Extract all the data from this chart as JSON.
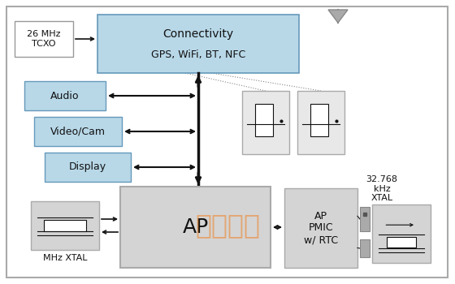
{
  "bg_color": "#ffffff",
  "outer_border_color": "#999999",
  "blue_fill": "#b8d8e8",
  "blue_border": "#6699bb",
  "gray_fill": "#c8c8c8",
  "gray_border": "#999999",
  "lgray_fill": "#d4d4d4",
  "lgray_border": "#aaaaaa",
  "white_fill": "#ffffff",
  "tcxo_label": "26 MHz\nTCXO",
  "connectivity_line1": "Connectivity",
  "connectivity_line2": "GPS, WiFi, BT, NFC",
  "audio_label": "Audio",
  "videocam_label": "Video/Cam",
  "display_label": "Display",
  "ap_label": "AP",
  "ap_pmic_label": "AP\nPMIC\nw/ RTC",
  "mhz_xtal_label": "MHz XTAL",
  "khz_label": "32.768\nkHz\nXTAL",
  "watermark": "统小电子"
}
